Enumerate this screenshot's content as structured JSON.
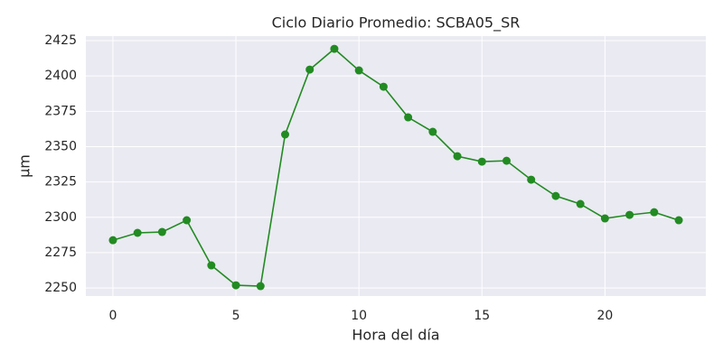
{
  "chart_data": {
    "type": "line",
    "title": "Ciclo Diario Promedio: SCBA05_SR",
    "x_label": "Hora del día",
    "y_label": "µm",
    "x": [
      0,
      1,
      2,
      3,
      4,
      5,
      6,
      7,
      8,
      9,
      10,
      11,
      12,
      13,
      14,
      15,
      16,
      17,
      18,
      19,
      20,
      21,
      22,
      23
    ],
    "series": [
      {
        "name": "SCBA05_SR",
        "color": "#228b22",
        "values": [
          2283.8,
          2289.0,
          2289.6,
          2297.9,
          2266.0,
          2251.9,
          2251.3,
          2358.6,
          2404.5,
          2419.2,
          2403.9,
          2392.4,
          2370.7,
          2360.5,
          2343.2,
          2339.4,
          2340.0,
          2326.6,
          2315.1,
          2309.4,
          2299.2,
          2301.7,
          2303.6,
          2297.9
        ]
      }
    ],
    "xlim": [
      -1.1,
      24.1
    ],
    "xticks": [
      0,
      5,
      10,
      15,
      20
    ],
    "ylim": [
      2244.3,
      2428.2
    ],
    "yticks": [
      2250,
      2275,
      2300,
      2325,
      2350,
      2375,
      2400,
      2425
    ],
    "grid": true,
    "legend": false
  }
}
